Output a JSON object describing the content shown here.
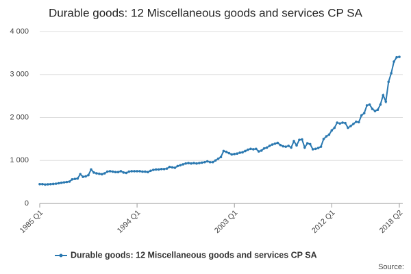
{
  "chart_data": {
    "type": "line",
    "title": "Durable goods: 12 Miscellaneous goods and services CP SA",
    "source": "Source:",
    "categories": [
      "1985 Q1",
      null,
      null,
      null,
      null,
      null,
      null,
      null,
      null,
      null,
      null,
      null,
      null,
      null,
      null,
      null,
      null,
      null,
      null,
      null,
      null,
      null,
      null,
      null,
      null,
      null,
      null,
      null,
      null,
      null,
      null,
      null,
      null,
      null,
      null,
      null,
      "1994 Q1",
      null,
      null,
      null,
      null,
      null,
      null,
      null,
      null,
      null,
      null,
      null,
      null,
      null,
      null,
      null,
      null,
      null,
      null,
      null,
      null,
      null,
      null,
      null,
      null,
      null,
      null,
      null,
      null,
      null,
      null,
      null,
      null,
      null,
      null,
      null,
      "2003 Q1",
      null,
      null,
      null,
      null,
      null,
      null,
      null,
      null,
      null,
      null,
      null,
      null,
      null,
      null,
      null,
      null,
      null,
      null,
      null,
      null,
      null,
      null,
      null,
      null,
      null,
      null,
      null,
      null,
      null,
      null,
      null,
      null,
      null,
      null,
      null,
      "2012 Q1",
      null,
      null,
      null,
      null,
      null,
      null,
      null,
      null,
      null,
      null,
      null,
      null,
      null,
      null,
      null,
      null,
      null,
      null,
      null,
      null,
      null,
      null,
      null,
      null,
      "2018 Q2"
    ],
    "series": [
      {
        "name": "Durable goods: 12 Miscellaneous goods and services CP SA",
        "color": "#2a78b0",
        "values": [
          450,
          450,
          440,
          445,
          450,
          455,
          460,
          470,
          480,
          490,
          500,
          510,
          560,
          570,
          580,
          680,
          620,
          630,
          660,
          790,
          720,
          700,
          690,
          680,
          700,
          740,
          750,
          740,
          730,
          730,
          750,
          720,
          710,
          740,
          750,
          750,
          750,
          750,
          740,
          740,
          730,
          760,
          780,
          790,
          790,
          800,
          800,
          810,
          850,
          840,
          830,
          870,
          890,
          910,
          930,
          940,
          930,
          940,
          930,
          940,
          950,
          960,
          980,
          960,
          960,
          1000,
          1040,
          1080,
          1220,
          1200,
          1170,
          1140,
          1150,
          1160,
          1180,
          1190,
          1220,
          1250,
          1270,
          1260,
          1270,
          1210,
          1230,
          1280,
          1300,
          1340,
          1370,
          1390,
          1410,
          1360,
          1330,
          1320,
          1340,
          1300,
          1450,
          1350,
          1480,
          1490,
          1300,
          1400,
          1380,
          1260,
          1270,
          1290,
          1320,
          1500,
          1560,
          1600,
          1700,
          1760,
          1880,
          1860,
          1880,
          1870,
          1760,
          1800,
          1850,
          1900,
          1890,
          2050,
          2100,
          2280,
          2300,
          2200,
          2150,
          2180,
          2300,
          2520,
          2370,
          2830,
          3030,
          3300,
          3400,
          3410
        ]
      }
    ],
    "ylim": [
      0,
      4000
    ],
    "yticks": [
      0,
      {
        "value": 1000,
        "label": "1 000"
      },
      {
        "value": 2000,
        "label": "2 000"
      },
      {
        "value": 3000,
        "label": "3 000"
      },
      {
        "value": 4000,
        "label": "4 000"
      }
    ],
    "grid": true,
    "legend": "bottom"
  }
}
